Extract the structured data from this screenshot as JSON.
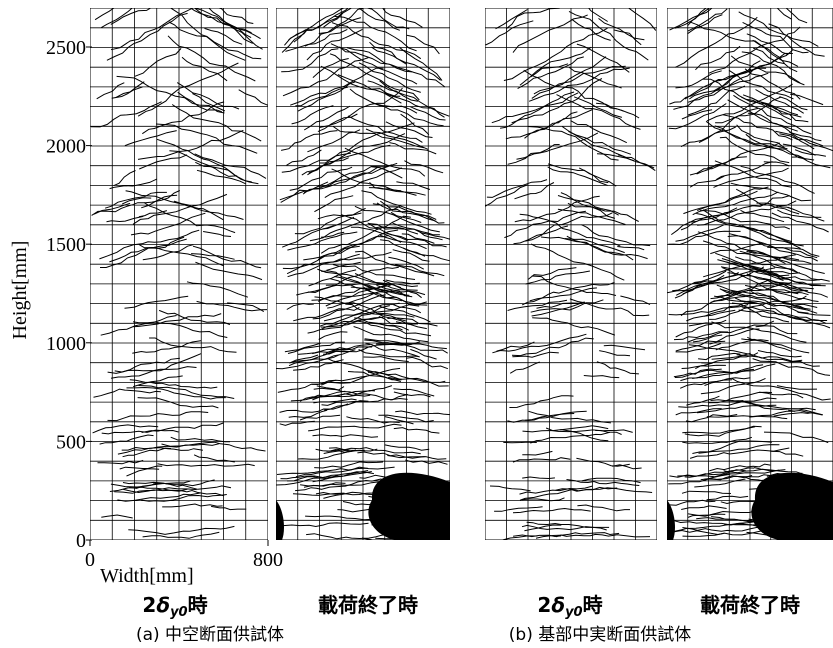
{
  "figure": {
    "y_axis": {
      "label": "Height[mm]",
      "ticks": [
        0,
        500,
        1000,
        1500,
        2000,
        2500
      ]
    },
    "x_axis": {
      "label": "Width[mm]",
      "ticks": [
        0,
        800
      ]
    },
    "panels": [
      {
        "caption": "(a) 中空断面供試体",
        "views": [
          {
            "prefix": "2",
            "symbol": "δ",
            "subscript": "y0",
            "suffix": "時"
          },
          {
            "label": "載荷終了時"
          }
        ]
      },
      {
        "caption": "(b) 基部中実断面供試体",
        "views": [
          {
            "prefix": "2",
            "symbol": "δ",
            "subscript": "y0",
            "suffix": "時"
          },
          {
            "label": "載荷終了時"
          }
        ]
      }
    ]
  }
}
